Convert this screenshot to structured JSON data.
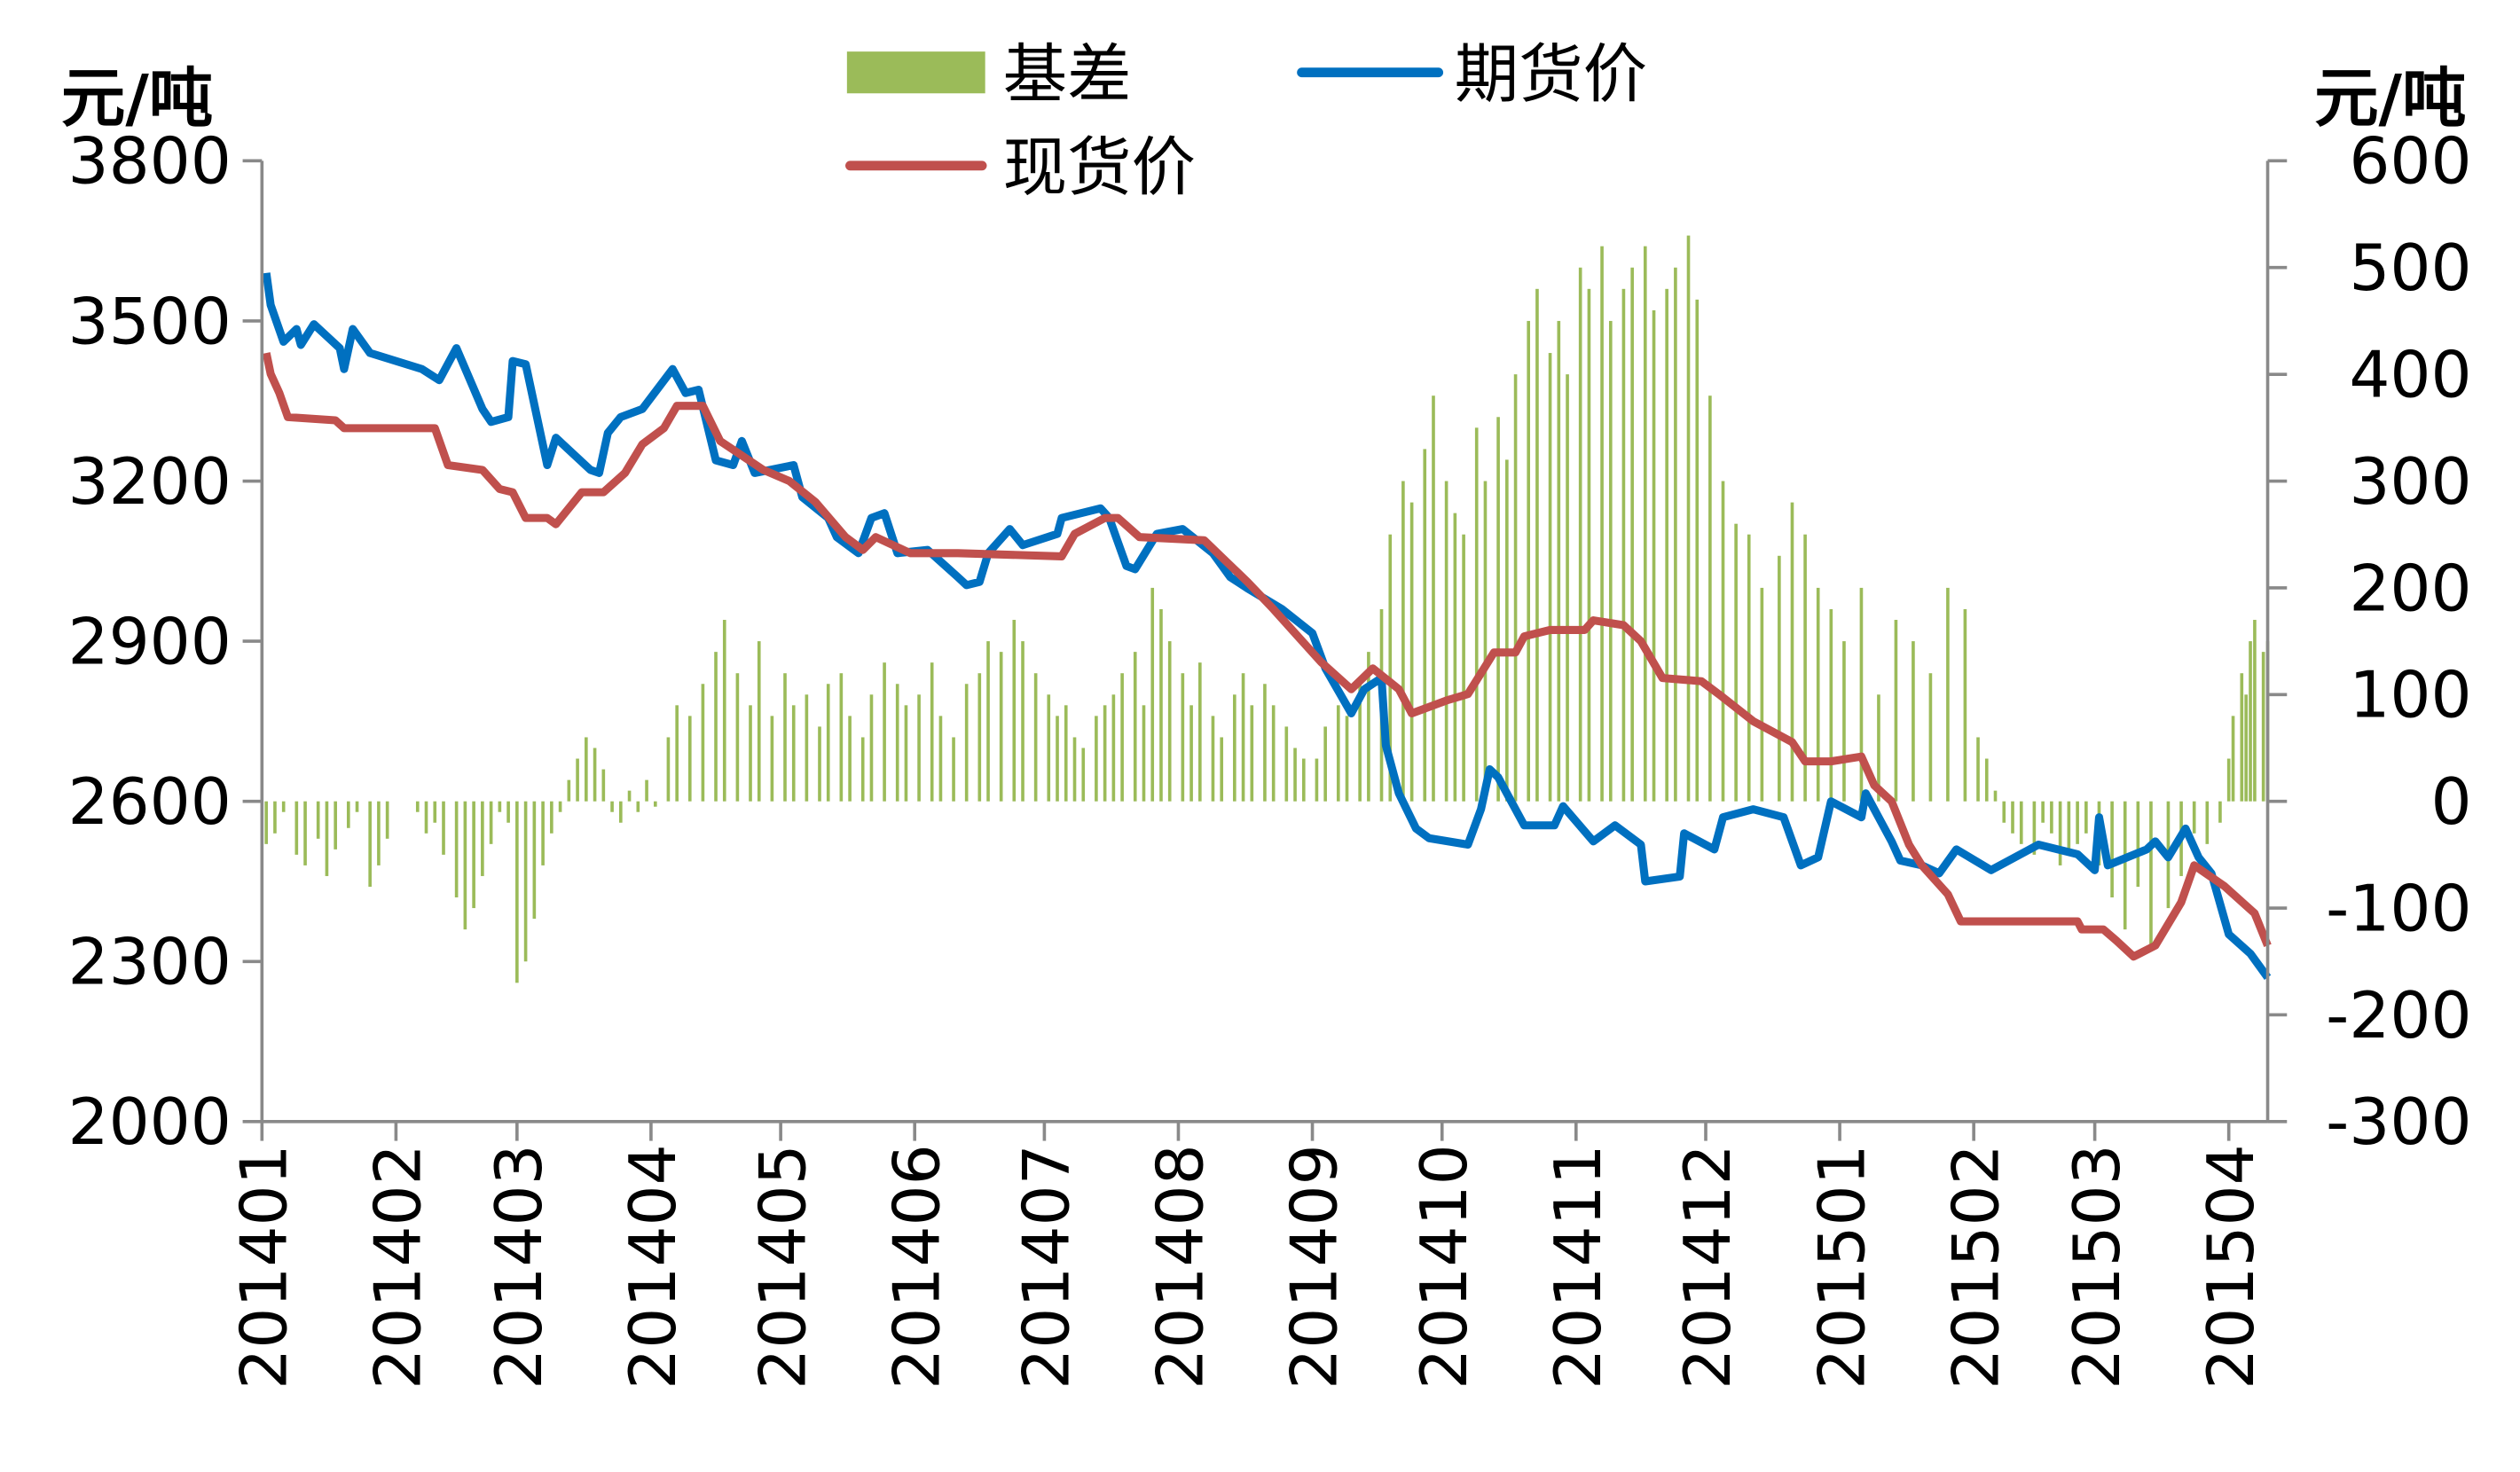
{
  "chart_data": {
    "type": "bar+line",
    "left_axis": {
      "unit": "元/吨",
      "ylim": [
        2000,
        3800
      ],
      "ticks": [
        "2000",
        "2300",
        "2600",
        "2900",
        "3200",
        "3500",
        "3800"
      ]
    },
    "right_axis": {
      "unit": "元/吨",
      "ylim": [
        -300,
        600
      ],
      "ticks": [
        "-300",
        "-200",
        "-100",
        "0",
        "100",
        "200",
        "300",
        "400",
        "500",
        "600"
      ]
    },
    "x_ticks": [
      "201401",
      "201402",
      "201403",
      "201404",
      "201405",
      "201406",
      "201407",
      "201408",
      "201409",
      "201410",
      "201411",
      "201412",
      "201501",
      "201502",
      "201503",
      "201504"
    ],
    "x_range": [
      "2014-01-01",
      "2015-04-10"
    ],
    "grid": false,
    "legend_position": "top",
    "colors": {
      "basis": "#9bbb59",
      "futures": "#0070c0",
      "spot": "#c0504d",
      "axis": "#898989"
    },
    "series": [
      {
        "name": "基差",
        "type": "bar",
        "axis": "right",
        "values_by_month": {
          "2014-01": [
            -40,
            -30,
            -10,
            -50,
            -60,
            -35,
            -70,
            -45,
            -25,
            -10,
            -80,
            -60,
            -35
          ],
          "2014-02": [
            0,
            0,
            -10,
            -30,
            -20,
            -50,
            -90,
            -120,
            -100,
            -70,
            -40,
            -10,
            -20
          ],
          "2014-03": [
            -170,
            -150,
            -110,
            -60,
            -30,
            -10,
            20,
            40,
            60,
            50,
            30,
            -10,
            -20,
            10,
            -10,
            20
          ],
          "2014-04": [
            -5,
            60,
            90,
            80,
            110,
            140,
            170,
            120,
            90,
            150,
            80
          ],
          "2014-05": [
            120,
            90,
            100,
            70,
            110,
            120,
            80,
            60,
            100,
            130,
            110,
            90
          ],
          "2014-06": [
            100,
            130,
            80,
            60,
            110,
            120,
            150,
            140,
            170,
            150,
            120
          ],
          "2014-07": [
            100,
            80,
            90,
            60,
            50,
            80,
            90,
            100,
            120,
            140,
            90,
            200,
            180,
            150
          ],
          "2014-08": [
            120,
            90,
            130,
            80,
            60,
            100,
            120,
            90,
            110,
            90,
            70,
            50,
            40
          ],
          "2014-09": [
            40,
            70,
            90,
            80,
            110,
            140,
            180,
            250,
            300,
            280,
            330,
            380
          ],
          "2014-10": [
            300,
            270,
            250,
            350,
            300,
            360,
            320,
            400,
            450,
            480,
            420,
            450,
            400
          ],
          "2014-11": [
            500,
            480,
            520,
            450,
            480,
            500,
            520,
            460,
            480,
            500,
            530,
            470
          ],
          "2014-12": [
            380,
            300,
            260,
            250,
            200,
            230,
            280,
            250,
            200,
            180
          ],
          "2015-01": [
            150,
            200,
            100,
            170,
            150,
            120,
            200,
            180
          ],
          "2015-02": [
            60,
            40,
            10,
            -20,
            -30,
            -40,
            -50,
            -20,
            -30,
            -60,
            -50,
            -40,
            -30
          ],
          "2015-03": [
            -60,
            -90,
            -120,
            -80,
            -140,
            -100,
            -70,
            -30,
            -40,
            -20
          ],
          "2015-04": [
            40,
            80,
            120,
            100,
            150,
            170,
            140,
            150
          ]
        }
      },
      {
        "name": "期货价",
        "type": "line",
        "axis": "left",
        "points": [
          [
            "2014-01-02",
            3590
          ],
          [
            "2014-01-03",
            3530
          ],
          [
            "2014-01-06",
            3461
          ],
          [
            "2014-01-09",
            3485
          ],
          [
            "2014-01-10",
            3455
          ],
          [
            "2014-01-13",
            3494
          ],
          [
            "2014-01-19",
            3449
          ],
          [
            "2014-01-20",
            3410
          ],
          [
            "2014-01-22",
            3485
          ],
          [
            "2014-01-26",
            3440
          ],
          [
            "2014-02-07",
            3410
          ],
          [
            "2014-02-11",
            3389
          ],
          [
            "2014-02-15",
            3449
          ],
          [
            "2014-02-21",
            3335
          ],
          [
            "2014-02-23",
            3311
          ],
          [
            "2014-02-27",
            3320
          ],
          [
            "2014-02-28",
            3425
          ],
          [
            "2014-03-03",
            3419
          ],
          [
            "2014-03-08",
            3230
          ],
          [
            "2014-03-10",
            3281
          ],
          [
            "2014-03-18",
            3221
          ],
          [
            "2014-03-20",
            3215
          ],
          [
            "2014-03-22",
            3290
          ],
          [
            "2014-03-25",
            3320
          ],
          [
            "2014-03-30",
            3335
          ],
          [
            "2014-04-06",
            3410
          ],
          [
            "2014-04-09",
            3365
          ],
          [
            "2014-04-12",
            3371
          ],
          [
            "2014-04-16",
            3239
          ],
          [
            "2014-04-20",
            3230
          ],
          [
            "2014-04-22",
            3275
          ],
          [
            "2014-04-25",
            3215
          ],
          [
            "2014-05-04",
            3230
          ],
          [
            "2014-05-06",
            3170
          ],
          [
            "2014-05-12",
            3131
          ],
          [
            "2014-05-14",
            3095
          ],
          [
            "2014-05-19",
            3065
          ],
          [
            "2014-05-22",
            3131
          ],
          [
            "2014-05-25",
            3140
          ],
          [
            "2014-05-28",
            3065
          ],
          [
            "2014-06-04",
            3071
          ],
          [
            "2014-06-11",
            3020
          ],
          [
            "2014-06-13",
            3005
          ],
          [
            "2014-06-16",
            3011
          ],
          [
            "2014-06-18",
            3065
          ],
          [
            "2014-06-23",
            3110
          ],
          [
            "2014-06-26",
            3080
          ],
          [
            "2014-07-04",
            3101
          ],
          [
            "2014-07-05",
            3131
          ],
          [
            "2014-07-14",
            3149
          ],
          [
            "2014-07-16",
            3131
          ],
          [
            "2014-07-20",
            3041
          ],
          [
            "2014-07-22",
            3035
          ],
          [
            "2014-07-27",
            3101
          ],
          [
            "2014-08-02",
            3110
          ],
          [
            "2014-08-09",
            3065
          ],
          [
            "2014-08-13",
            3020
          ],
          [
            "2014-08-17",
            2999
          ],
          [
            "2014-08-25",
            2960
          ],
          [
            "2014-09-01",
            2915
          ],
          [
            "2014-09-04",
            2849
          ],
          [
            "2014-09-10",
            2765
          ],
          [
            "2014-09-13",
            2810
          ],
          [
            "2014-09-17",
            2831
          ],
          [
            "2014-09-18",
            2705
          ],
          [
            "2014-09-21",
            2615
          ],
          [
            "2014-09-25",
            2549
          ],
          [
            "2014-09-28",
            2531
          ],
          [
            "2014-10-07",
            2519
          ],
          [
            "2014-10-10",
            2585
          ],
          [
            "2014-10-12",
            2660
          ],
          [
            "2014-10-14",
            2645
          ],
          [
            "2014-10-20",
            2555
          ],
          [
            "2014-10-27",
            2555
          ],
          [
            "2014-10-29",
            2591
          ],
          [
            "2014-11-05",
            2525
          ],
          [
            "2014-11-10",
            2555
          ],
          [
            "2014-11-16",
            2519
          ],
          [
            "2014-11-17",
            2450
          ],
          [
            "2014-11-25",
            2459
          ],
          [
            "2014-11-26",
            2540
          ],
          [
            "2014-12-03",
            2510
          ],
          [
            "2014-12-05",
            2570
          ],
          [
            "2014-12-12",
            2585
          ],
          [
            "2014-12-19",
            2570
          ],
          [
            "2014-12-23",
            2480
          ],
          [
            "2014-12-27",
            2495
          ],
          [
            "2014-12-30",
            2600
          ],
          [
            "2015-01-06",
            2570
          ],
          [
            "2015-01-07",
            2615
          ],
          [
            "2015-01-13",
            2525
          ],
          [
            "2015-01-15",
            2489
          ],
          [
            "2015-01-20",
            2480
          ],
          [
            "2015-01-24",
            2465
          ],
          [
            "2015-01-28",
            2510
          ],
          [
            "2015-02-05",
            2471
          ],
          [
            "2015-02-16",
            2519
          ],
          [
            "2015-02-25",
            2501
          ],
          [
            "2015-03-01",
            2471
          ],
          [
            "2015-03-02",
            2570
          ],
          [
            "2015-03-04",
            2480
          ],
          [
            "2015-03-13",
            2510
          ],
          [
            "2015-03-15",
            2525
          ],
          [
            "2015-03-18",
            2495
          ],
          [
            "2015-03-22",
            2549
          ],
          [
            "2015-03-25",
            2495
          ],
          [
            "2015-03-28",
            2465
          ],
          [
            "2015-04-01",
            2351
          ],
          [
            "2015-04-06",
            2315
          ],
          [
            "2015-04-10",
            2270
          ]
        ]
      },
      {
        "name": "现货价",
        "type": "line",
        "axis": "left",
        "points": [
          [
            "2014-01-02",
            3440
          ],
          [
            "2014-01-03",
            3401
          ],
          [
            "2014-01-05",
            3365
          ],
          [
            "2014-01-07",
            3320
          ],
          [
            "2014-01-18",
            3314
          ],
          [
            "2014-01-20",
            3299
          ],
          [
            "2014-02-10",
            3299
          ],
          [
            "2014-02-13",
            3230
          ],
          [
            "2014-02-21",
            3221
          ],
          [
            "2014-02-25",
            3185
          ],
          [
            "2014-02-28",
            3179
          ],
          [
            "2014-03-03",
            3131
          ],
          [
            "2014-03-08",
            3131
          ],
          [
            "2014-03-10",
            3119
          ],
          [
            "2014-03-16",
            3179
          ],
          [
            "2014-03-21",
            3179
          ],
          [
            "2014-03-26",
            3215
          ],
          [
            "2014-03-30",
            3269
          ],
          [
            "2014-04-04",
            3299
          ],
          [
            "2014-04-07",
            3341
          ],
          [
            "2014-04-13",
            3341
          ],
          [
            "2014-04-17",
            3275
          ],
          [
            "2014-04-27",
            3221
          ],
          [
            "2014-05-03",
            3200
          ],
          [
            "2014-05-09",
            3161
          ],
          [
            "2014-05-16",
            3095
          ],
          [
            "2014-05-20",
            3071
          ],
          [
            "2014-05-23",
            3095
          ],
          [
            "2014-05-31",
            3065
          ],
          [
            "2014-06-11",
            3065
          ],
          [
            "2014-07-05",
            3059
          ],
          [
            "2014-07-08",
            3101
          ],
          [
            "2014-07-15",
            3131
          ],
          [
            "2014-07-18",
            3131
          ],
          [
            "2014-07-23",
            3095
          ],
          [
            "2014-08-07",
            3089
          ],
          [
            "2014-08-12",
            3050
          ],
          [
            "2014-08-17",
            3011
          ],
          [
            "2014-08-23",
            2960
          ],
          [
            "2014-08-28",
            2915
          ],
          [
            "2014-09-03",
            2861
          ],
          [
            "2014-09-10",
            2810
          ],
          [
            "2014-09-15",
            2849
          ],
          [
            "2014-09-21",
            2810
          ],
          [
            "2014-09-24",
            2765
          ],
          [
            "2014-10-02",
            2789
          ],
          [
            "2014-10-07",
            2801
          ],
          [
            "2014-10-13",
            2879
          ],
          [
            "2014-10-18",
            2879
          ],
          [
            "2014-10-20",
            2909
          ],
          [
            "2014-10-26",
            2921
          ],
          [
            "2014-11-03",
            2921
          ],
          [
            "2014-11-05",
            2939
          ],
          [
            "2014-11-12",
            2930
          ],
          [
            "2014-11-16",
            2900
          ],
          [
            "2014-11-21",
            2831
          ],
          [
            "2014-11-30",
            2825
          ],
          [
            "2014-12-04",
            2801
          ],
          [
            "2014-12-12",
            2750
          ],
          [
            "2014-12-21",
            2711
          ],
          [
            "2014-12-24",
            2675
          ],
          [
            "2014-12-30",
            2675
          ],
          [
            "2015-01-06",
            2684
          ],
          [
            "2015-01-09",
            2630
          ],
          [
            "2015-01-13",
            2600
          ],
          [
            "2015-01-17",
            2519
          ],
          [
            "2015-01-20",
            2480
          ],
          [
            "2015-01-26",
            2426
          ],
          [
            "2015-01-29",
            2375
          ],
          [
            "2015-02-25",
            2375
          ],
          [
            "2015-02-26",
            2360
          ],
          [
            "2015-03-03",
            2360
          ],
          [
            "2015-03-06",
            2339
          ],
          [
            "2015-03-10",
            2309
          ],
          [
            "2015-03-15",
            2330
          ],
          [
            "2015-03-21",
            2411
          ],
          [
            "2015-03-24",
            2480
          ],
          [
            "2015-03-31",
            2441
          ],
          [
            "2015-04-07",
            2390
          ],
          [
            "2015-04-10",
            2330
          ]
        ]
      }
    ]
  }
}
